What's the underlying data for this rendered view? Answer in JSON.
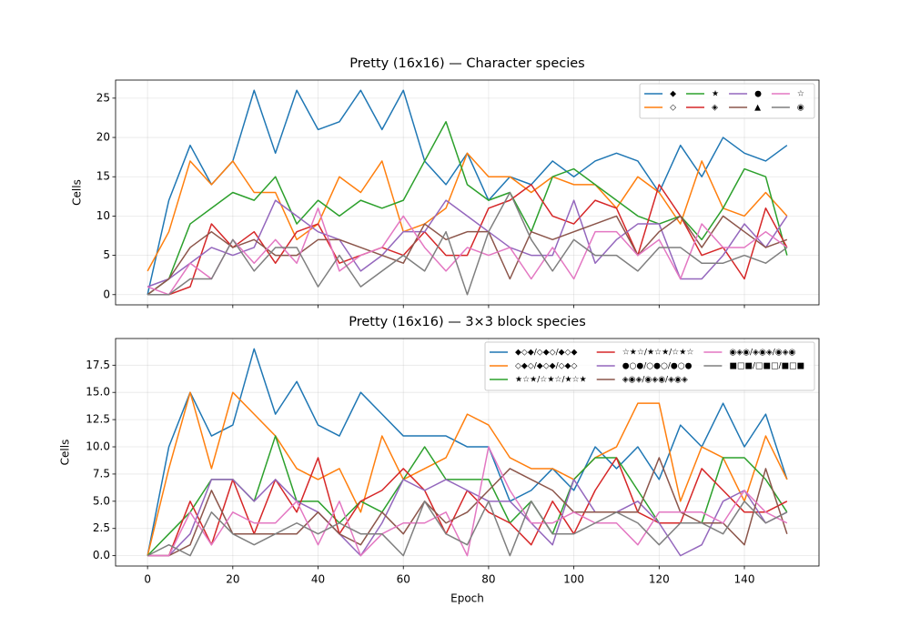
{
  "chart_data": [
    {
      "type": "line",
      "title": "Pretty (16x16) — Character species",
      "ylabel": "Cells",
      "x": [
        0,
        5,
        10,
        15,
        20,
        25,
        30,
        35,
        40,
        45,
        50,
        55,
        60,
        65,
        70,
        75,
        80,
        85,
        90,
        95,
        100,
        105,
        110,
        115,
        120,
        125,
        130,
        135,
        140,
        145,
        150
      ],
      "xlim": [
        -7.5,
        157.5
      ],
      "xticks": [
        0,
        20,
        40,
        60,
        80,
        100,
        120,
        140
      ],
      "ylim": [
        -1.3,
        27.3
      ],
      "yticks": [
        0,
        5,
        10,
        15,
        20,
        25
      ],
      "grid": true,
      "legend": "upper right",
      "legend_ncol": 4,
      "series": [
        {
          "name": "◆",
          "color": "#1f77b4",
          "values": [
            0,
            12,
            19,
            14,
            17,
            26,
            18,
            26,
            21,
            22,
            26,
            21,
            26,
            17,
            14,
            18,
            12,
            15,
            14,
            17,
            15,
            17,
            18,
            17,
            13,
            19,
            15,
            20,
            18,
            17,
            19
          ]
        },
        {
          "name": "◇",
          "color": "#ff7f0e",
          "values": [
            3,
            8,
            17,
            14,
            17,
            13,
            13,
            7,
            9,
            15,
            13,
            17,
            8,
            9,
            11,
            18,
            15,
            15,
            13,
            15,
            14,
            14,
            11,
            15,
            13,
            9,
            17,
            11,
            10,
            13,
            10
          ]
        },
        {
          "name": "★",
          "color": "#2ca02c",
          "values": [
            0,
            2,
            9,
            11,
            13,
            12,
            15,
            9,
            12,
            10,
            12,
            11,
            12,
            17,
            22,
            14,
            12,
            13,
            8,
            15,
            16,
            14,
            12,
            10,
            9,
            10,
            7,
            11,
            16,
            15,
            5
          ]
        },
        {
          "name": "◈",
          "color": "#d62728",
          "values": [
            0,
            0,
            1,
            9,
            6,
            8,
            4,
            8,
            9,
            4,
            5,
            6,
            5,
            8,
            5,
            5,
            11,
            12,
            14,
            10,
            9,
            12,
            11,
            5,
            14,
            10,
            5,
            6,
            2,
            11,
            6
          ]
        },
        {
          "name": "●",
          "color": "#9467bd",
          "values": [
            1,
            2,
            4,
            6,
            5,
            6,
            12,
            10,
            8,
            7,
            3,
            5,
            8,
            8,
            12,
            10,
            8,
            6,
            5,
            5,
            12,
            4,
            7,
            9,
            9,
            2,
            2,
            5,
            9,
            6,
            10
          ]
        },
        {
          "name": "▲",
          "color": "#8c564b",
          "values": [
            0,
            2,
            6,
            8,
            6,
            7,
            5,
            5,
            7,
            7,
            6,
            5,
            4,
            9,
            7,
            8,
            8,
            2,
            8,
            7,
            8,
            9,
            10,
            5,
            8,
            10,
            6,
            10,
            8,
            6,
            7
          ]
        },
        {
          "name": "☆",
          "color": "#e377c2",
          "values": [
            1,
            0,
            4,
            2,
            7,
            4,
            7,
            4,
            11,
            3,
            5,
            6,
            10,
            6,
            3,
            6,
            5,
            6,
            2,
            6,
            2,
            8,
            8,
            5,
            7,
            2,
            9,
            6,
            6,
            8,
            6
          ]
        },
        {
          "name": "◉",
          "color": "#7f7f7f",
          "values": [
            0,
            0,
            2,
            2,
            7,
            3,
            6,
            6,
            1,
            5,
            1,
            3,
            5,
            3,
            8,
            0,
            8,
            13,
            7,
            3,
            7,
            5,
            5,
            3,
            6,
            6,
            4,
            4,
            5,
            4,
            6
          ]
        }
      ]
    },
    {
      "type": "line",
      "title": "Pretty (16x16) — 3×3 block species",
      "ylabel": "Cells",
      "xlabel": "Epoch",
      "x": [
        0,
        5,
        10,
        15,
        20,
        25,
        30,
        35,
        40,
        45,
        50,
        55,
        60,
        65,
        70,
        75,
        80,
        85,
        90,
        95,
        100,
        105,
        110,
        115,
        120,
        125,
        130,
        135,
        140,
        145,
        150
      ],
      "xlim": [
        -7.5,
        157.5
      ],
      "xticks": [
        0,
        20,
        40,
        60,
        80,
        100,
        120,
        140
      ],
      "ylim": [
        -0.95,
        19.95
      ],
      "yticks": [
        {
          "value": 0,
          "label": "0.0"
        },
        2.5,
        {
          "value": 5,
          "label": "5.0"
        },
        7.5,
        {
          "value": 10,
          "label": "10.0"
        },
        12.5,
        {
          "value": 15,
          "label": "15.0"
        },
        17.5
      ],
      "grid": true,
      "legend": "upper right",
      "legend_ncol": 3,
      "series": [
        {
          "name": "◆◇◆/◇◆◇/◆◇◆",
          "color": "#1f77b4",
          "values": [
            0,
            10,
            15,
            11,
            12,
            19,
            13,
            16,
            12,
            11,
            15,
            13,
            11,
            11,
            11,
            10,
            10,
            5,
            6,
            8,
            6,
            10,
            8,
            10,
            7,
            12,
            10,
            14,
            10,
            13,
            7
          ]
        },
        {
          "name": "◇◆◇/◆◇◆/◇◆◇",
          "color": "#ff7f0e",
          "values": [
            0,
            8,
            15,
            8,
            15,
            13,
            11,
            8,
            7,
            8,
            4,
            11,
            7,
            8,
            9,
            13,
            12,
            9,
            8,
            8,
            7,
            9,
            10,
            14,
            14,
            5,
            10,
            9,
            5,
            11,
            7
          ]
        },
        {
          "name": "★☆★/☆★☆/★☆★",
          "color": "#2ca02c",
          "values": [
            0,
            2,
            4,
            7,
            7,
            5,
            11,
            5,
            5,
            3,
            5,
            4,
            7,
            10,
            7,
            7,
            7,
            3,
            5,
            2,
            7,
            9,
            9,
            6,
            3,
            3,
            3,
            9,
            9,
            7,
            4
          ]
        },
        {
          "name": "☆★☆/★☆★/☆★☆",
          "color": "#d62728",
          "values": [
            0,
            0,
            5,
            1,
            7,
            2,
            7,
            4,
            9,
            2,
            5,
            6,
            8,
            6,
            2,
            6,
            4,
            3,
            1,
            5,
            2,
            6,
            9,
            4,
            3,
            3,
            8,
            6,
            4,
            4,
            5
          ]
        },
        {
          "name": "●○●/○●○/●○●",
          "color": "#9467bd",
          "values": [
            0,
            0,
            2,
            7,
            7,
            5,
            7,
            5,
            4,
            2,
            0,
            3,
            7,
            6,
            7,
            6,
            5,
            5,
            3,
            1,
            7,
            4,
            4,
            5,
            3,
            0,
            1,
            5,
            6,
            3,
            4
          ]
        },
        {
          "name": "◈◉◈/◉◈◉/◈◉◈",
          "color": "#8c564b",
          "values": [
            0,
            0,
            1,
            6,
            2,
            2,
            2,
            2,
            4,
            2,
            1,
            4,
            2,
            5,
            3,
            4,
            6,
            8,
            7,
            6,
            4,
            4,
            4,
            4,
            9,
            4,
            3,
            3,
            1,
            8,
            2
          ]
        },
        {
          "name": "◉◈◉/◈◉◈/◉◈◉",
          "color": "#e377c2",
          "values": [
            0,
            0,
            4,
            1,
            4,
            3,
            3,
            5,
            1,
            5,
            0,
            2,
            3,
            3,
            4,
            0,
            10,
            6,
            3,
            3,
            4,
            3,
            3,
            1,
            4,
            4,
            4,
            3,
            6,
            4,
            3
          ]
        },
        {
          "name": "■□■/□■□/■□■",
          "color": "#7f7f7f",
          "values": [
            0,
            1,
            0,
            4,
            2,
            1,
            2,
            3,
            2,
            3,
            2,
            2,
            0,
            5,
            2,
            1,
            5,
            0,
            5,
            2,
            2,
            3,
            4,
            3,
            1,
            3,
            3,
            2,
            5,
            3,
            4
          ]
        }
      ]
    }
  ]
}
